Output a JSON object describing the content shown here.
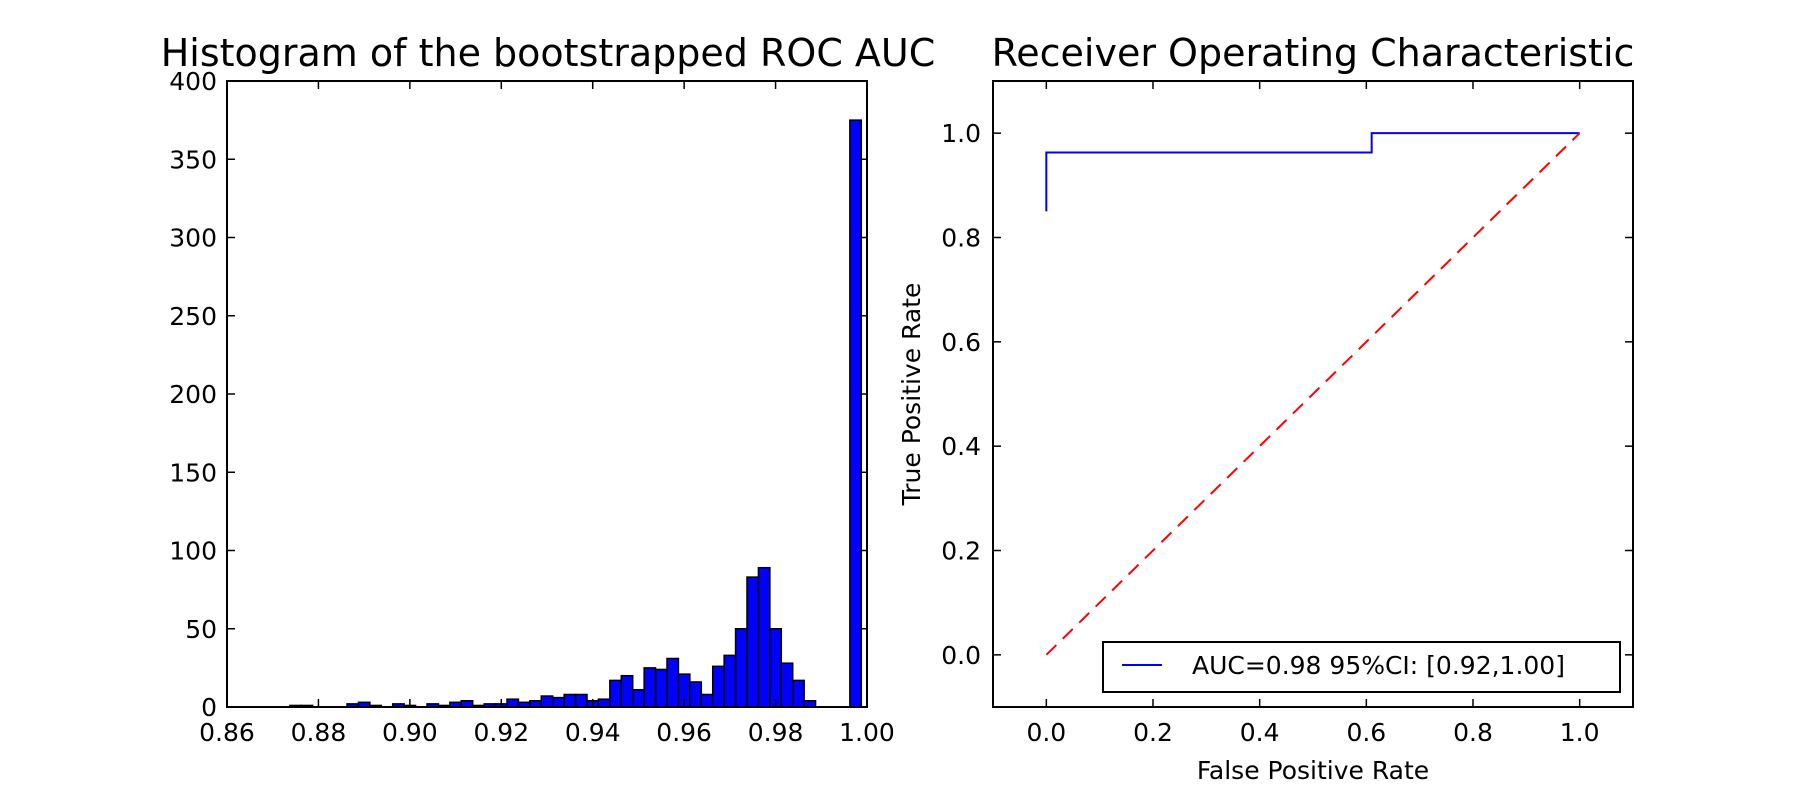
{
  "chart_data": [
    {
      "type": "bar",
      "title": "Histogram of the bootstrapped ROC AUC",
      "xlabel": "",
      "ylabel": "",
      "xlim": [
        0.86,
        1.0
      ],
      "ylim": [
        0,
        400
      ],
      "xticks": [
        "0.86",
        "0.88",
        "0.90",
        "0.92",
        "0.94",
        "0.96",
        "0.98",
        "1.00"
      ],
      "yticks": [
        "0",
        "50",
        "100",
        "150",
        "200",
        "250",
        "300",
        "350",
        "400"
      ],
      "bar_color": "#0000ff",
      "bin_width": 0.0025,
      "bins": [
        {
          "x": 0.8725,
          "value": 0
        },
        {
          "x": 0.875,
          "value": 1
        },
        {
          "x": 0.8775,
          "value": 1
        },
        {
          "x": 0.88,
          "value": 0
        },
        {
          "x": 0.8825,
          "value": 0
        },
        {
          "x": 0.885,
          "value": 0
        },
        {
          "x": 0.8875,
          "value": 2
        },
        {
          "x": 0.89,
          "value": 3
        },
        {
          "x": 0.8925,
          "value": 1
        },
        {
          "x": 0.895,
          "value": 0
        },
        {
          "x": 0.8975,
          "value": 2
        },
        {
          "x": 0.9,
          "value": 1
        },
        {
          "x": 0.9025,
          "value": 0
        },
        {
          "x": 0.905,
          "value": 2
        },
        {
          "x": 0.9075,
          "value": 1
        },
        {
          "x": 0.91,
          "value": 3
        },
        {
          "x": 0.9125,
          "value": 4
        },
        {
          "x": 0.915,
          "value": 1
        },
        {
          "x": 0.9175,
          "value": 2
        },
        {
          "x": 0.92,
          "value": 2
        },
        {
          "x": 0.9225,
          "value": 5
        },
        {
          "x": 0.925,
          "value": 3
        },
        {
          "x": 0.9275,
          "value": 4
        },
        {
          "x": 0.93,
          "value": 7
        },
        {
          "x": 0.9325,
          "value": 6
        },
        {
          "x": 0.935,
          "value": 8
        },
        {
          "x": 0.9375,
          "value": 8
        },
        {
          "x": 0.94,
          "value": 4
        },
        {
          "x": 0.9425,
          "value": 5
        },
        {
          "x": 0.945,
          "value": 17
        },
        {
          "x": 0.9475,
          "value": 20
        },
        {
          "x": 0.95,
          "value": 11
        },
        {
          "x": 0.9525,
          "value": 25
        },
        {
          "x": 0.955,
          "value": 24
        },
        {
          "x": 0.9575,
          "value": 31
        },
        {
          "x": 0.96,
          "value": 21
        },
        {
          "x": 0.9625,
          "value": 16
        },
        {
          "x": 0.965,
          "value": 8
        },
        {
          "x": 0.9675,
          "value": 26
        },
        {
          "x": 0.97,
          "value": 33
        },
        {
          "x": 0.9725,
          "value": 50
        },
        {
          "x": 0.975,
          "value": 83
        },
        {
          "x": 0.9775,
          "value": 89
        },
        {
          "x": 0.98,
          "value": 50
        },
        {
          "x": 0.9825,
          "value": 28
        },
        {
          "x": 0.985,
          "value": 17
        },
        {
          "x": 0.9875,
          "value": 4
        },
        {
          "x": 0.99,
          "value": 0
        },
        {
          "x": 0.9925,
          "value": 0
        },
        {
          "x": 0.995,
          "value": 0
        },
        {
          "x": 0.9975,
          "value": 375
        }
      ]
    },
    {
      "type": "line",
      "title": "Receiver Operating Characteristic",
      "xlabel": "False Positive Rate",
      "ylabel": "True Positive Rate",
      "xlim": [
        -0.1,
        1.1
      ],
      "ylim": [
        -0.1,
        1.1
      ],
      "xticks": [
        "0.0",
        "0.2",
        "0.4",
        "0.6",
        "0.8",
        "1.0"
      ],
      "yticks": [
        "0.0",
        "0.2",
        "0.4",
        "0.6",
        "0.8",
        "1.0"
      ],
      "legend_placement": "lower-right",
      "series": [
        {
          "name": "AUC=0.98 95%CI: [0.92,1.00]",
          "color": "#0000ff",
          "style": "solid",
          "x": [
            0.0,
            0.0,
            0.61,
            0.61,
            1.0
          ],
          "y": [
            0.85,
            0.963,
            0.963,
            1.0,
            1.0
          ]
        },
        {
          "name": "",
          "color": "#ff0000",
          "style": "dashed",
          "x": [
            0.0,
            1.0
          ],
          "y": [
            0.0,
            1.0
          ]
        }
      ]
    }
  ]
}
